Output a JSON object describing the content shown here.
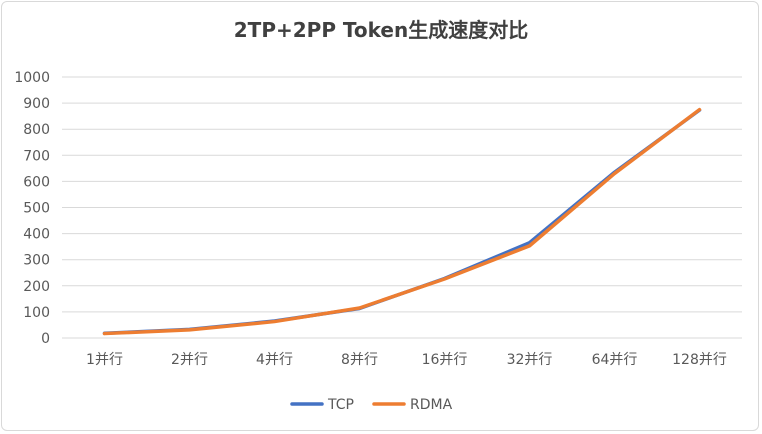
{
  "chart_data": {
    "type": "line",
    "title": "2TP+2PP Token生成速度对比",
    "xlabel": "",
    "ylabel": "",
    "categories": [
      "1并行",
      "2并行",
      "4并行",
      "8并行",
      "16并行",
      "32并行",
      "64并行",
      "128并行"
    ],
    "ylim": [
      0,
      1000
    ],
    "yticks": [
      0,
      100,
      200,
      300,
      400,
      500,
      600,
      700,
      800,
      900,
      1000
    ],
    "grid": true,
    "legend_position": "bottom",
    "series": [
      {
        "name": "TCP",
        "color": "#4472C4",
        "values": [
          18,
          33,
          65,
          113,
          228,
          365,
          635,
          873
        ]
      },
      {
        "name": "RDMA",
        "color": "#ED7D31",
        "values": [
          17,
          31,
          63,
          115,
          226,
          353,
          630,
          875
        ]
      }
    ]
  }
}
